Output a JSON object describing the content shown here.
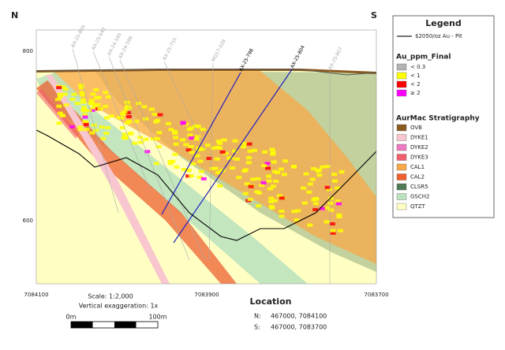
{
  "section": {
    "north_label": "N",
    "south_label": "S",
    "y_ticks": [
      800,
      600
    ],
    "x_ticks": [
      7084100,
      7083900,
      7083700
    ],
    "drillholes": [
      "AX-25-800",
      "AX-25-642",
      "AX-24-590",
      "AX-24-598",
      "AX-25-755",
      "MQ17-028",
      "AX-25-798",
      "AX-25-804",
      "AX-25-807"
    ]
  },
  "legend": {
    "title": "Legend",
    "pit": "$2050/oz Au - Pit",
    "grade_title": "Au_ppm_Final",
    "grades": [
      {
        "label": "< 0.3",
        "color": "#b3b3b3"
      },
      {
        "label": "< 1",
        "color": "#ffff00"
      },
      {
        "label": "< 2",
        "color": "#ff0000"
      },
      {
        "label": "≥ 2",
        "color": "#ff00ff"
      }
    ],
    "strat_title": "AurMac Stratigraphy",
    "units": [
      {
        "label": "OVB",
        "color": "#8b5a1e"
      },
      {
        "label": "DYKE1",
        "color": "#f8c6cf"
      },
      {
        "label": "DYKE2",
        "color": "#ee78c0"
      },
      {
        "label": "DYKE3",
        "color": "#f0606c"
      },
      {
        "label": "CAL1",
        "color": "#f8a848"
      },
      {
        "label": "CAL2",
        "color": "#ee6030"
      },
      {
        "label": "CLSR5",
        "color": "#4f7a55"
      },
      {
        "label": "GSCH2",
        "color": "#b9e2bd"
      },
      {
        "label": "QTZT",
        "color": "#ffffc4"
      }
    ]
  },
  "footer": {
    "scale": "Scale: 1:2,000",
    "exaggeration": "Vertical exaggeration: 1x",
    "scale_start": "0m",
    "scale_end": "100m",
    "location_title": "Location",
    "north_key": "N:",
    "north_coords": "467000, 7084100",
    "south_key": "S:",
    "south_coords": "467000, 7083700"
  }
}
